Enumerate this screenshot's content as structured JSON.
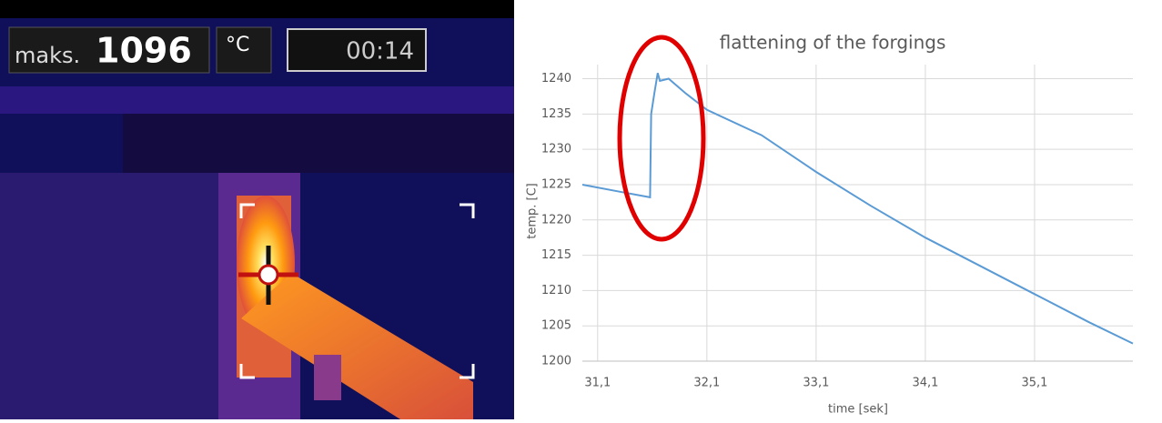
{
  "thermal": {
    "label": "maks.",
    "value": "1096",
    "unit": "°C",
    "time": "00:14"
  },
  "chart_data": {
    "type": "line",
    "title": "flattening of the forgings",
    "x_label": "time [sek]",
    "y_label": "temp. [C]",
    "x": [
      30.96,
      31.3,
      31.58,
      31.59,
      31.62,
      31.65,
      31.67,
      31.75,
      31.9,
      32.1,
      32.6,
      33.1,
      33.6,
      34.1,
      34.6,
      35.1,
      35.6,
      36.0
    ],
    "values": [
      1225,
      1224,
      1223.2,
      1235,
      1238,
      1240.8,
      1239.7,
      1240,
      1238,
      1235.6,
      1232,
      1226.8,
      1222,
      1217.5,
      1213.5,
      1209.5,
      1205.5,
      1202.5
    ],
    "color": "#5b9bd5",
    "xlim": [
      30.96,
      36.0
    ],
    "xticks": [
      {
        "value": 31.1,
        "label": "31,1"
      },
      {
        "value": 32.1,
        "label": "32,1"
      },
      {
        "value": 33.1,
        "label": "33,1"
      },
      {
        "value": 34.1,
        "label": "34,1"
      },
      {
        "value": 35.1,
        "label": "35,1"
      }
    ],
    "ylim": [
      1200,
      1242
    ],
    "yticks": [
      1200,
      1205,
      1210,
      1215,
      1220,
      1225,
      1230,
      1235,
      1240
    ],
    "grid": true
  }
}
